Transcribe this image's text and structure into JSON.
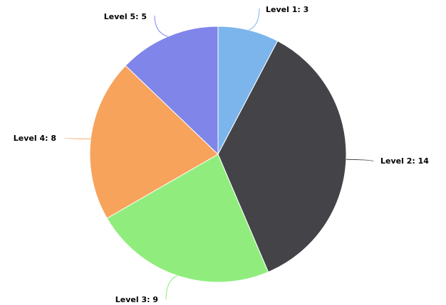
{
  "chart_data": {
    "type": "pie",
    "title": "",
    "start_angle_deg": 0,
    "direction": "clockwise",
    "legend": "none",
    "slices": [
      {
        "label": "Level 1",
        "value": 3,
        "display": "Level 1: 3",
        "color": "#7cb5ec"
      },
      {
        "label": "Level 2",
        "value": 14,
        "display": "Level 2: 14",
        "color": "#434348"
      },
      {
        "label": "Level 3",
        "value": 9,
        "display": "Level 3: 9",
        "color": "#90ed7d"
      },
      {
        "label": "Level 4",
        "value": 8,
        "display": "Level 4: 8",
        "color": "#f7a35c"
      },
      {
        "label": "Level 5",
        "value": 5,
        "display": "Level 5: 5",
        "color": "#8085e9"
      }
    ]
  }
}
